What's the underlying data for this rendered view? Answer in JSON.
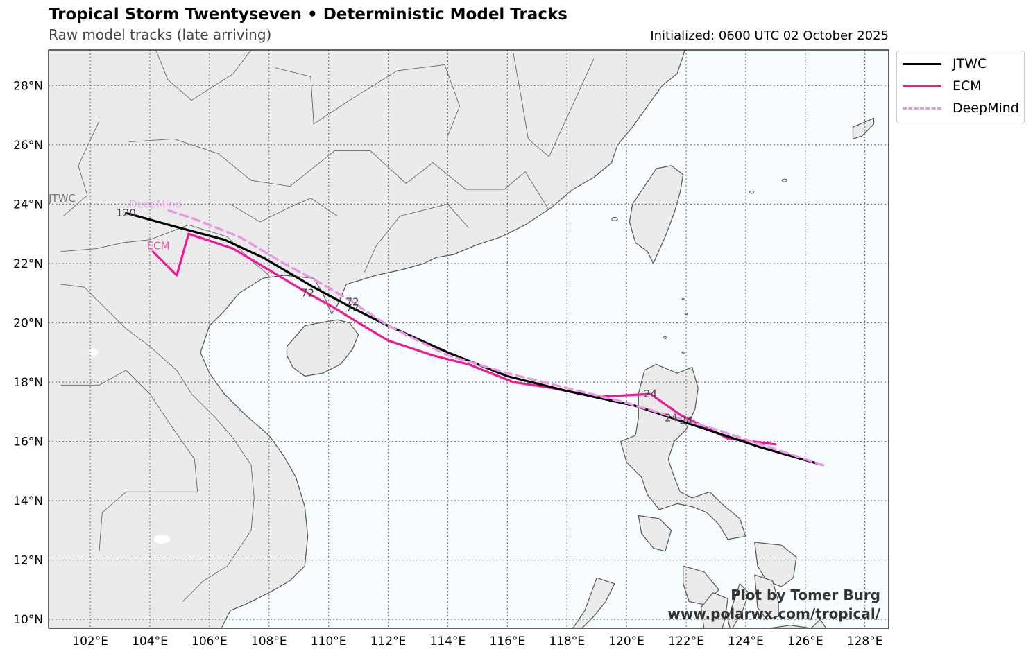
{
  "header": {
    "title": "Tropical Storm Twentyseven • Deterministic Model Tracks",
    "subtitle": "Raw model tracks (late arriving)",
    "initialized": "Initialized: 0600 UTC 02 October 2025"
  },
  "credit": {
    "line1": "Plot by Tomer Burg",
    "line2": "www.polarwx.com/tropical/"
  },
  "colors": {
    "ocean": "#f7fdfe",
    "land": "#ebebeb",
    "coast": "#555555",
    "grid": "#777777"
  },
  "chart_data": {
    "type": "map",
    "xlim": [
      100.6,
      128.8
    ],
    "ylim": [
      9.7,
      29.2
    ],
    "grid": true,
    "legend_position": "top-right-outside",
    "x_ticks": [
      {
        "value": 102,
        "label": "102°E"
      },
      {
        "value": 104,
        "label": "104°E"
      },
      {
        "value": 106,
        "label": "106°E"
      },
      {
        "value": 108,
        "label": "108°E"
      },
      {
        "value": 110,
        "label": "110°E"
      },
      {
        "value": 112,
        "label": "112°E"
      },
      {
        "value": 114,
        "label": "114°E"
      },
      {
        "value": 116,
        "label": "116°E"
      },
      {
        "value": 118,
        "label": "118°E"
      },
      {
        "value": 120,
        "label": "120°E"
      },
      {
        "value": 122,
        "label": "122°E"
      },
      {
        "value": 124,
        "label": "124°E"
      },
      {
        "value": 126,
        "label": "126°E"
      },
      {
        "value": 128,
        "label": "128°E"
      }
    ],
    "y_ticks": [
      {
        "value": 10,
        "label": "10°N"
      },
      {
        "value": 12,
        "label": "12°N"
      },
      {
        "value": 14,
        "label": "14°N"
      },
      {
        "value": 16,
        "label": "16°N"
      },
      {
        "value": 18,
        "label": "18°N"
      },
      {
        "value": 20,
        "label": "20°N"
      },
      {
        "value": 22,
        "label": "22°N"
      },
      {
        "value": 24,
        "label": "24°N"
      },
      {
        "value": 26,
        "label": "26°N"
      },
      {
        "value": 28,
        "label": "28°N"
      }
    ],
    "series": [
      {
        "name": "JTWC",
        "color": "#000000",
        "dash": "solid",
        "points": [
          [
            126.6,
            15.2
          ],
          [
            124.5,
            15.8
          ],
          [
            123.0,
            16.3
          ],
          [
            121.5,
            16.8
          ],
          [
            120.3,
            17.2
          ],
          [
            118.0,
            17.7
          ],
          [
            116.0,
            18.2
          ],
          [
            114.0,
            19.0
          ],
          [
            112.0,
            19.9
          ],
          [
            110.8,
            20.5
          ],
          [
            109.5,
            21.2
          ],
          [
            107.8,
            22.2
          ],
          [
            106.5,
            22.8
          ],
          [
            105.0,
            23.2
          ],
          [
            103.2,
            23.7
          ]
        ],
        "labels": [
          {
            "text": "24",
            "lon": 121.5,
            "lat": 16.8
          },
          {
            "text": "72",
            "lon": 110.8,
            "lat": 20.5
          },
          {
            "text": "120",
            "lon": 103.2,
            "lat": 23.7
          }
        ],
        "end_label": {
          "text": "JTWC",
          "lon": 100.6,
          "lat": 24.2
        }
      },
      {
        "name": "ECM",
        "color": "#f01897",
        "dash": "solid",
        "points": [
          [
            125.0,
            15.9
          ],
          [
            123.4,
            16.1
          ],
          [
            121.8,
            16.9
          ],
          [
            120.8,
            17.6
          ],
          [
            119.0,
            17.5
          ],
          [
            117.5,
            17.8
          ],
          [
            116.2,
            18.0
          ],
          [
            114.7,
            18.6
          ],
          [
            113.5,
            18.9
          ],
          [
            112.0,
            19.4
          ],
          [
            111.0,
            20.0
          ],
          [
            110.2,
            20.5
          ],
          [
            109.3,
            21.0
          ],
          [
            108.3,
            21.6
          ],
          [
            106.8,
            22.5
          ],
          [
            105.3,
            23.0
          ],
          [
            104.9,
            21.6
          ],
          [
            104.1,
            22.4
          ]
        ],
        "labels": [
          {
            "text": "24",
            "lon": 120.8,
            "lat": 17.6
          },
          {
            "text": "72",
            "lon": 109.3,
            "lat": 21.0
          }
        ],
        "end_label": {
          "text": "ECM",
          "lon": 103.9,
          "lat": 22.6
        }
      },
      {
        "name": "DeepMind",
        "color": "#ea95e8",
        "dash": "dashed",
        "points": [
          [
            126.6,
            15.2
          ],
          [
            124.5,
            15.9
          ],
          [
            123.0,
            16.4
          ],
          [
            122.0,
            16.7
          ],
          [
            121.0,
            17.0
          ],
          [
            120.0,
            17.3
          ],
          [
            118.0,
            17.8
          ],
          [
            116.0,
            18.3
          ],
          [
            114.0,
            18.9
          ],
          [
            112.0,
            19.9
          ],
          [
            110.8,
            20.7
          ],
          [
            109.8,
            21.3
          ],
          [
            108.5,
            22.0
          ],
          [
            107.0,
            22.9
          ],
          [
            105.5,
            23.5
          ],
          [
            104.6,
            23.8
          ]
        ],
        "labels": [
          {
            "text": "24",
            "lon": 122.0,
            "lat": 16.7
          },
          {
            "text": "72",
            "lon": 110.8,
            "lat": 20.7
          }
        ],
        "end_label": {
          "text": "DeepMind",
          "lon": 103.3,
          "lat": 24.0
        }
      }
    ]
  },
  "legend": {
    "items": [
      {
        "label": "JTWC"
      },
      {
        "label": "ECM"
      },
      {
        "label": "DeepMind"
      }
    ]
  }
}
